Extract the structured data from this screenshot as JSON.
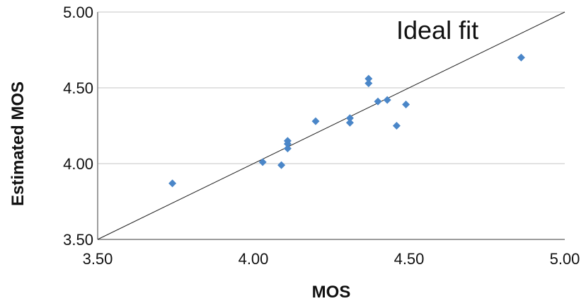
{
  "chart_data": {
    "type": "scatter",
    "xlabel": "MOS",
    "ylabel": "Estimated MOS",
    "xlim": [
      3.5,
      5.0
    ],
    "ylim": [
      3.5,
      5.0
    ],
    "x_ticks": [
      "3.50",
      "4.00",
      "4.50",
      "5.00"
    ],
    "y_ticks": [
      "3.50",
      "4.00",
      "4.50",
      "5.00"
    ],
    "grid": "horizontal",
    "marker": "diamond",
    "point_color": "#4a86c8",
    "series": [
      {
        "points": [
          {
            "x": 3.74,
            "y": 3.87
          },
          {
            "x": 4.03,
            "y": 4.01
          },
          {
            "x": 4.09,
            "y": 3.99
          },
          {
            "x": 4.11,
            "y": 4.15
          },
          {
            "x": 4.11,
            "y": 4.13
          },
          {
            "x": 4.11,
            "y": 4.1
          },
          {
            "x": 4.2,
            "y": 4.28
          },
          {
            "x": 4.31,
            "y": 4.3
          },
          {
            "x": 4.31,
            "y": 4.27
          },
          {
            "x": 4.37,
            "y": 4.56
          },
          {
            "x": 4.37,
            "y": 4.53
          },
          {
            "x": 4.4,
            "y": 4.41
          },
          {
            "x": 4.43,
            "y": 4.42
          },
          {
            "x": 4.46,
            "y": 4.25
          },
          {
            "x": 4.49,
            "y": 4.39
          },
          {
            "x": 4.86,
            "y": 4.7
          }
        ]
      }
    ],
    "reference_line": {
      "label": "Ideal fit",
      "x": [
        3.5,
        5.0
      ],
      "y": [
        3.5,
        5.0
      ],
      "color": "#222222"
    }
  }
}
